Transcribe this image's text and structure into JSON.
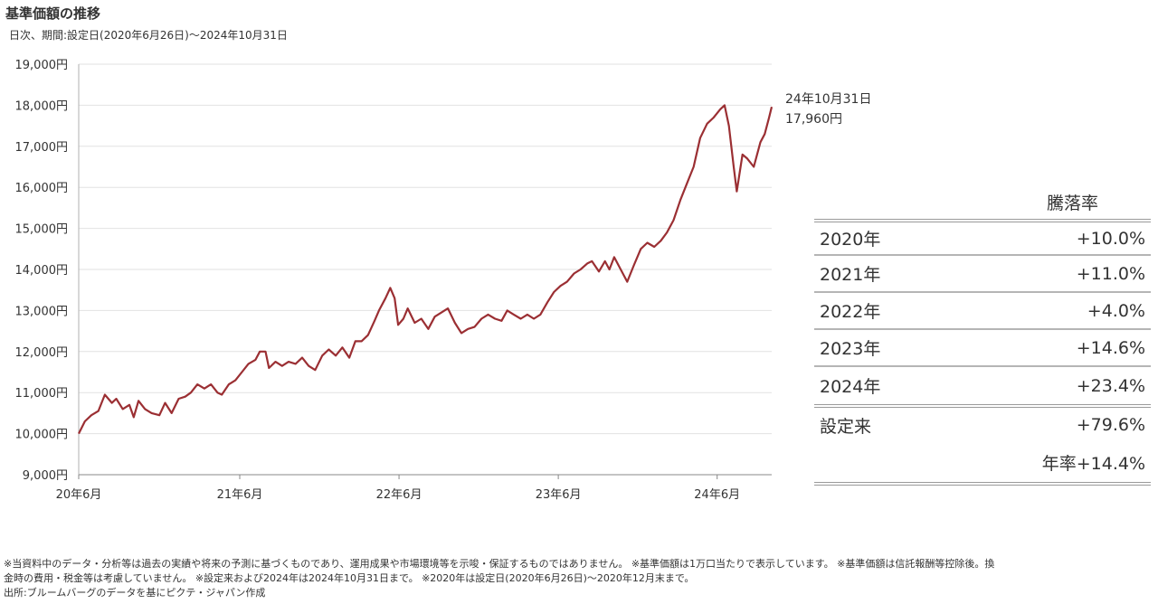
{
  "title": "基準価額の推移",
  "subtitle": "日次、期間:設定日(2020年6月26日)～2024年10月31日",
  "chart_data": {
    "type": "line",
    "title": "基準価額の推移",
    "ylim": [
      9000,
      19000
    ],
    "y_ticks": [
      "9,000円",
      "10,000円",
      "11,000円",
      "12,000円",
      "13,000円",
      "14,000円",
      "15,000円",
      "16,000円",
      "17,000円",
      "18,000円",
      "19,000円"
    ],
    "x_ticks": [
      "20年6月",
      "21年6月",
      "22年6月",
      "23年6月",
      "24年6月"
    ],
    "x_range": [
      "2020-06-26",
      "2024-10-31"
    ],
    "grid": "horizontal",
    "color": "#9b2f33",
    "series": [
      {
        "points": [
          [
            "2020-06-26",
            10000
          ],
          [
            "2020-07-10",
            10300
          ],
          [
            "2020-07-25",
            10450
          ],
          [
            "2020-08-10",
            10550
          ],
          [
            "2020-08-25",
            10950
          ],
          [
            "2020-09-10",
            10750
          ],
          [
            "2020-09-20",
            10850
          ],
          [
            "2020-10-05",
            10600
          ],
          [
            "2020-10-20",
            10700
          ],
          [
            "2020-10-30",
            10400
          ],
          [
            "2020-11-10",
            10800
          ],
          [
            "2020-11-25",
            10600
          ],
          [
            "2020-12-10",
            10500
          ],
          [
            "2020-12-28",
            10450
          ],
          [
            "2021-01-10",
            10750
          ],
          [
            "2021-01-25",
            10500
          ],
          [
            "2021-02-10",
            10850
          ],
          [
            "2021-02-25",
            10900
          ],
          [
            "2021-03-10",
            11000
          ],
          [
            "2021-03-25",
            11200
          ],
          [
            "2021-04-10",
            11100
          ],
          [
            "2021-04-25",
            11200
          ],
          [
            "2021-05-10",
            11000
          ],
          [
            "2021-05-20",
            10950
          ],
          [
            "2021-06-05",
            11200
          ],
          [
            "2021-06-20",
            11300
          ],
          [
            "2021-07-05",
            11500
          ],
          [
            "2021-07-20",
            11700
          ],
          [
            "2021-08-05",
            11800
          ],
          [
            "2021-08-15",
            12000
          ],
          [
            "2021-08-28",
            12000
          ],
          [
            "2021-09-05",
            11600
          ],
          [
            "2021-09-20",
            11750
          ],
          [
            "2021-10-05",
            11650
          ],
          [
            "2021-10-20",
            11750
          ],
          [
            "2021-11-05",
            11700
          ],
          [
            "2021-11-20",
            11850
          ],
          [
            "2021-12-05",
            11650
          ],
          [
            "2021-12-20",
            11550
          ],
          [
            "2022-01-05",
            11900
          ],
          [
            "2022-01-20",
            12050
          ],
          [
            "2022-02-05",
            11900
          ],
          [
            "2022-02-20",
            12100
          ],
          [
            "2022-03-08",
            11850
          ],
          [
            "2022-03-22",
            12250
          ],
          [
            "2022-04-05",
            12250
          ],
          [
            "2022-04-20",
            12400
          ],
          [
            "2022-05-05",
            12750
          ],
          [
            "2022-05-15",
            13000
          ],
          [
            "2022-05-30",
            13300
          ],
          [
            "2022-06-10",
            13550
          ],
          [
            "2022-06-20",
            13300
          ],
          [
            "2022-06-28",
            12650
          ],
          [
            "2022-07-10",
            12800
          ],
          [
            "2022-07-20",
            13050
          ],
          [
            "2022-08-05",
            12700
          ],
          [
            "2022-08-20",
            12800
          ],
          [
            "2022-09-05",
            12550
          ],
          [
            "2022-09-20",
            12850
          ],
          [
            "2022-10-05",
            12950
          ],
          [
            "2022-10-20",
            13050
          ],
          [
            "2022-11-05",
            12700
          ],
          [
            "2022-11-20",
            12450
          ],
          [
            "2022-12-05",
            12550
          ],
          [
            "2022-12-20",
            12600
          ],
          [
            "2023-01-05",
            12800
          ],
          [
            "2023-01-20",
            12900
          ],
          [
            "2023-02-05",
            12800
          ],
          [
            "2023-02-20",
            12750
          ],
          [
            "2023-03-05",
            13000
          ],
          [
            "2023-03-20",
            12900
          ],
          [
            "2023-04-05",
            12800
          ],
          [
            "2023-04-20",
            12900
          ],
          [
            "2023-05-05",
            12800
          ],
          [
            "2023-05-20",
            12900
          ],
          [
            "2023-06-05",
            13200
          ],
          [
            "2023-06-20",
            13450
          ],
          [
            "2023-07-05",
            13600
          ],
          [
            "2023-07-20",
            13700
          ],
          [
            "2023-08-05",
            13900
          ],
          [
            "2023-08-20",
            14000
          ],
          [
            "2023-09-05",
            14150
          ],
          [
            "2023-09-15",
            14200
          ],
          [
            "2023-10-01",
            13950
          ],
          [
            "2023-10-15",
            14200
          ],
          [
            "2023-10-25",
            14000
          ],
          [
            "2023-11-05",
            14300
          ],
          [
            "2023-11-20",
            14000
          ],
          [
            "2023-12-05",
            13700
          ],
          [
            "2023-12-20",
            14100
          ],
          [
            "2024-01-05",
            14500
          ],
          [
            "2024-01-20",
            14650
          ],
          [
            "2024-02-05",
            14550
          ],
          [
            "2024-02-20",
            14700
          ],
          [
            "2024-03-05",
            14900
          ],
          [
            "2024-03-20",
            15200
          ],
          [
            "2024-04-05",
            15700
          ],
          [
            "2024-04-20",
            16100
          ],
          [
            "2024-05-05",
            16500
          ],
          [
            "2024-05-20",
            17200
          ],
          [
            "2024-06-05",
            17550
          ],
          [
            "2024-06-20",
            17700
          ],
          [
            "2024-07-05",
            17900
          ],
          [
            "2024-07-15",
            18000
          ],
          [
            "2024-07-25",
            17500
          ],
          [
            "2024-08-05",
            16500
          ],
          [
            "2024-08-12",
            15900
          ],
          [
            "2024-08-25",
            16800
          ],
          [
            "2024-09-05",
            16700
          ],
          [
            "2024-09-20",
            16500
          ],
          [
            "2024-10-05",
            17100
          ],
          [
            "2024-10-15",
            17300
          ],
          [
            "2024-10-25",
            17700
          ],
          [
            "2024-10-31",
            17960
          ]
        ]
      }
    ],
    "annotation": {
      "date": "24年10月31日",
      "value": "17,960円"
    }
  },
  "rate_table": {
    "header": "騰落率",
    "rows": [
      {
        "label": "2020年",
        "value": "+10.0%"
      },
      {
        "label": "2021年",
        "value": "+11.0%"
      },
      {
        "label": "2022年",
        "value": "+4.0%"
      },
      {
        "label": "2023年",
        "value": "+14.6%"
      },
      {
        "label": "2024年",
        "value": "+23.4%"
      }
    ],
    "since_label": "設定来",
    "since_value": "+79.6%",
    "annual_label": "年率+14.4%"
  },
  "notes": [
    "※当資料中のデータ・分析等は過去の実績や将来の予測に基づくものであり、運用成果や市場環境等を示唆・保証するものではありません。 ※基準価額は1万口当たりで表示しています。 ※基準価額は信託報酬等控除後。換",
    "金時の費用・税金等は考慮していません。 ※設定来および2024年は2024年10月31日まで。 ※2020年は設定日(2020年6月26日)～2020年12月末まで。",
    "出所:ブルームバーグのデータを基にピクテ・ジャパン作成"
  ]
}
